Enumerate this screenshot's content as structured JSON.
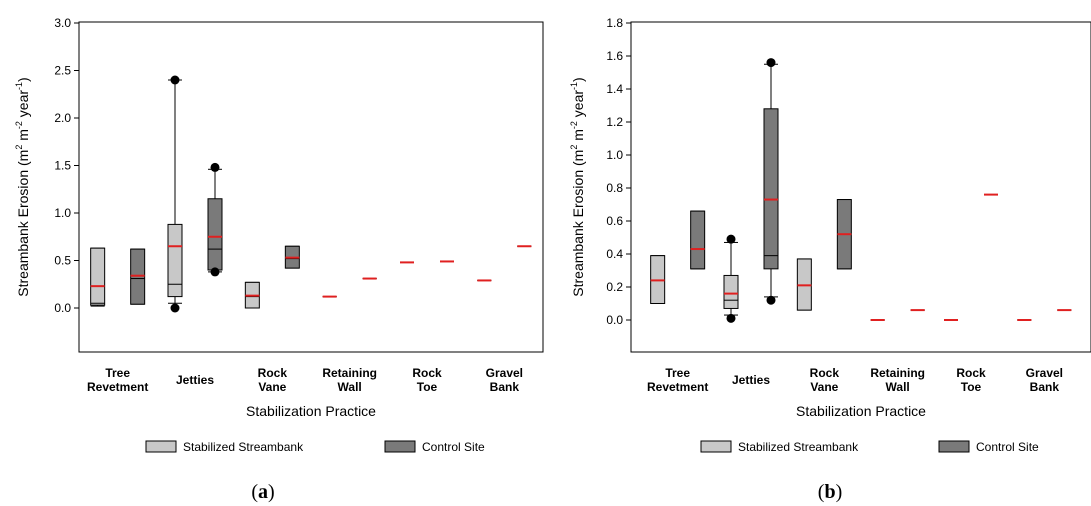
{
  "chart_data": [
    {
      "type": "box",
      "panel_label": "(a)",
      "xlabel": "Stabilization Practice",
      "ylabel": "Streambank Erosion (m² m⁻² year⁻¹)",
      "ylim": [
        0,
        3.0
      ],
      "yticks": [
        "0.0",
        "0.5",
        "1.0",
        "1.5",
        "2.0",
        "2.5",
        "3.0"
      ],
      "categories": [
        [
          "Tree",
          "Revetment"
        ],
        [
          "Jetties"
        ],
        [
          "Rock",
          "Vane"
        ],
        [
          "Retaining",
          "Wall"
        ],
        [
          "Rock",
          "Toe"
        ],
        [
          "Gravel",
          "Bank"
        ]
      ],
      "series": [
        {
          "name": "Stabilized Streambank",
          "color": "#c8c8c8",
          "boxes": [
            {
              "whisker_low": 0.02,
              "q1": 0.03,
              "median": 0.05,
              "mean": 0.23,
              "q3": 0.63,
              "whisker_high": 0.63,
              "outliers": []
            },
            {
              "whisker_low": 0.05,
              "q1": 0.12,
              "median": 0.25,
              "mean": 0.65,
              "q3": 0.88,
              "whisker_high": 2.4,
              "outliers": [
                2.4,
                0.0
              ]
            },
            {
              "whisker_low": 0.0,
              "q1": 0.0,
              "median": 0.12,
              "mean": 0.13,
              "q3": 0.27,
              "whisker_high": 0.27,
              "outliers": []
            },
            {
              "whisker_low": 0.12,
              "q1": 0.12,
              "median": 0.12,
              "mean": 0.12,
              "q3": 0.12,
              "whisker_high": 0.12,
              "outliers": []
            },
            {
              "whisker_low": 0.48,
              "q1": 0.48,
              "median": 0.48,
              "mean": 0.48,
              "q3": 0.48,
              "whisker_high": 0.48,
              "outliers": []
            },
            {
              "whisker_low": 0.29,
              "q1": 0.29,
              "median": 0.29,
              "mean": 0.29,
              "q3": 0.29,
              "whisker_high": 0.29,
              "outliers": []
            }
          ]
        },
        {
          "name": "Control Site",
          "color": "#7a7a7a",
          "boxes": [
            {
              "whisker_low": 0.04,
              "q1": 0.04,
              "median": 0.31,
              "mean": 0.34,
              "q3": 0.62,
              "whisker_high": 0.62,
              "outliers": []
            },
            {
              "whisker_low": 0.38,
              "q1": 0.4,
              "median": 0.62,
              "mean": 0.75,
              "q3": 1.15,
              "whisker_high": 1.46,
              "outliers": [
                1.48,
                0.38
              ]
            },
            {
              "whisker_low": 0.42,
              "q1": 0.42,
              "median": 0.52,
              "mean": 0.53,
              "q3": 0.65,
              "whisker_high": 0.65,
              "outliers": []
            },
            {
              "whisker_low": 0.31,
              "q1": 0.31,
              "median": 0.31,
              "mean": 0.31,
              "q3": 0.31,
              "whisker_high": 0.31,
              "outliers": []
            },
            {
              "whisker_low": 0.49,
              "q1": 0.49,
              "median": 0.49,
              "mean": 0.49,
              "q3": 0.49,
              "whisker_high": 0.49,
              "outliers": []
            },
            {
              "whisker_low": 0.65,
              "q1": 0.65,
              "median": 0.65,
              "mean": 0.65,
              "q3": 0.65,
              "whisker_high": 0.65,
              "outliers": []
            }
          ]
        }
      ],
      "mean_line_color": "#e02020",
      "legend_position": "bottom"
    },
    {
      "type": "box",
      "panel_label": "(b)",
      "xlabel": "Stabilization Practice",
      "ylabel": "Streambank Erosion (m² m⁻² year⁻¹)",
      "ylim": [
        0,
        1.8
      ],
      "yticks": [
        "0.0",
        "0.2",
        "0.4",
        "0.6",
        "0.8",
        "1.0",
        "1.2",
        "1.4",
        "1.6",
        "1.8"
      ],
      "categories": [
        [
          "Tree",
          "Revetment"
        ],
        [
          "Jetties"
        ],
        [
          "Rock",
          "Vane"
        ],
        [
          "Retaining",
          "Wall"
        ],
        [
          "Rock",
          "Toe"
        ],
        [
          "Gravel",
          "Bank"
        ]
      ],
      "series": [
        {
          "name": "Stabilized Streambank",
          "color": "#c8c8c8",
          "boxes": [
            {
              "whisker_low": 0.1,
              "q1": 0.1,
              "median": 0.24,
              "mean": 0.24,
              "q3": 0.39,
              "whisker_high": 0.39,
              "outliers": []
            },
            {
              "whisker_low": 0.03,
              "q1": 0.07,
              "median": 0.12,
              "mean": 0.16,
              "q3": 0.27,
              "whisker_high": 0.47,
              "outliers": [
                0.49,
                0.01
              ]
            },
            {
              "whisker_low": 0.06,
              "q1": 0.06,
              "median": 0.21,
              "mean": 0.21,
              "q3": 0.37,
              "whisker_high": 0.37,
              "outliers": []
            },
            {
              "whisker_low": 0.0,
              "q1": 0.0,
              "median": 0.0,
              "mean": 0.0,
              "q3": 0.0,
              "whisker_high": 0.0,
              "outliers": []
            },
            {
              "whisker_low": 0.0,
              "q1": 0.0,
              "median": 0.0,
              "mean": 0.0,
              "q3": 0.0,
              "whisker_high": 0.0,
              "outliers": []
            },
            {
              "whisker_low": 0.0,
              "q1": 0.0,
              "median": 0.0,
              "mean": 0.0,
              "q3": 0.0,
              "whisker_high": 0.0,
              "outliers": []
            }
          ]
        },
        {
          "name": "Control Site",
          "color": "#7a7a7a",
          "boxes": [
            {
              "whisker_low": 0.31,
              "q1": 0.31,
              "median": 0.43,
              "mean": 0.43,
              "q3": 0.66,
              "whisker_high": 0.66,
              "outliers": []
            },
            {
              "whisker_low": 0.14,
              "q1": 0.31,
              "median": 0.39,
              "mean": 0.73,
              "q3": 1.28,
              "whisker_high": 1.55,
              "outliers": [
                1.56,
                0.12
              ]
            },
            {
              "whisker_low": 0.31,
              "q1": 0.31,
              "median": 0.52,
              "mean": 0.52,
              "q3": 0.73,
              "whisker_high": 0.73,
              "outliers": []
            },
            {
              "whisker_low": 0.06,
              "q1": 0.06,
              "median": 0.06,
              "mean": 0.06,
              "q3": 0.06,
              "whisker_high": 0.06,
              "outliers": []
            },
            {
              "whisker_low": 0.76,
              "q1": 0.76,
              "median": 0.76,
              "mean": 0.76,
              "q3": 0.76,
              "whisker_high": 0.76,
              "outliers": []
            },
            {
              "whisker_low": 0.06,
              "q1": 0.06,
              "median": 0.06,
              "mean": 0.06,
              "q3": 0.06,
              "whisker_high": 0.06,
              "outliers": []
            }
          ]
        }
      ],
      "mean_line_color": "#e02020",
      "legend_position": "bottom"
    }
  ]
}
